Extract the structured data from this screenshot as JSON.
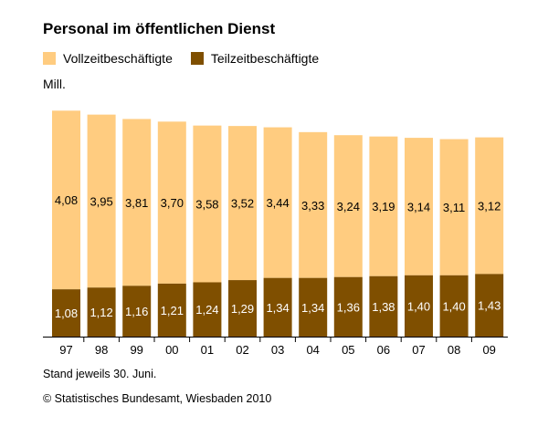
{
  "chart_data": {
    "type": "bar",
    "stacked": true,
    "title": "Personal im öffentlichen Dienst",
    "ylabel": "Mill.",
    "categories": [
      "97",
      "98",
      "99",
      "00",
      "01",
      "02",
      "03",
      "04",
      "05",
      "06",
      "07",
      "08",
      "09"
    ],
    "series": [
      {
        "name": "Teilzeitbeschäftigte",
        "color": "#7f4f00",
        "values": [
          1.08,
          1.12,
          1.16,
          1.21,
          1.24,
          1.29,
          1.34,
          1.34,
          1.36,
          1.38,
          1.4,
          1.4,
          1.43
        ],
        "labels": [
          "1,08",
          "1,12",
          "1,16",
          "1,21",
          "1,24",
          "1,29",
          "1,34",
          "1,34",
          "1,36",
          "1,38",
          "1,40",
          "1,40",
          "1,43"
        ]
      },
      {
        "name": "Vollzeitbeschäftigte",
        "color": "#ffcc80",
        "values": [
          4.08,
          3.95,
          3.81,
          3.7,
          3.58,
          3.52,
          3.44,
          3.33,
          3.24,
          3.19,
          3.14,
          3.11,
          3.12
        ],
        "labels": [
          "4,08",
          "3,95",
          "3,81",
          "3,70",
          "3,58",
          "3,52",
          "3,44",
          "3,33",
          "3,24",
          "3,19",
          "3,14",
          "3,11",
          "3,12"
        ]
      }
    ],
    "legend_position": "top-left",
    "grid": false
  },
  "note": "Stand jeweils 30. Juni.",
  "source": "© Statistisches Bundesamt, Wiesbaden 2010"
}
